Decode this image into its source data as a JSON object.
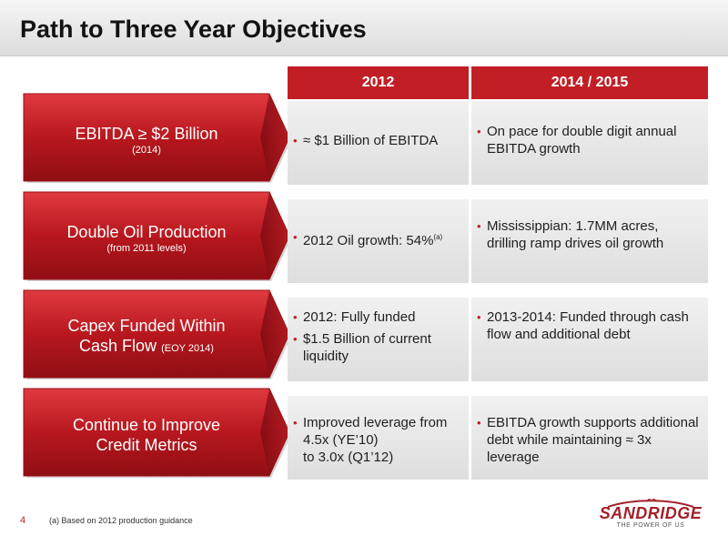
{
  "title": "Path to Three Year Objectives",
  "columns": [
    "2012",
    "2014 / 2015"
  ],
  "rows": [
    {
      "objective": "EBITDA ≥ $2 Billion",
      "note": "(2014)",
      "col2012": [
        "≈ $1 Billion of EBITDA"
      ],
      "col2015": [
        "On pace for double digit annual EBITDA growth"
      ]
    },
    {
      "objective": "Double Oil Production",
      "note": "(from 2011 levels)",
      "col2012": [
        "2012 Oil growth: 54%"
      ],
      "col2012_sup": "(a)",
      "col2015": [
        "Mississippian: 1.7MM acres, drilling ramp drives oil growth"
      ]
    },
    {
      "objective_line1": "Capex Funded Within",
      "objective_line2": "Cash Flow",
      "note": "(EOY 2014)",
      "col2012": [
        "2012: Fully funded",
        "$1.5 Billion of current liquidity"
      ],
      "col2015": [
        "2013-2014: Funded through cash flow and additional debt"
      ]
    },
    {
      "objective_line1": "Continue to Improve",
      "objective_line2": "Credit Metrics",
      "col2012_line1": "Improved leverage from",
      "col2012_line2": "4.5x (YE’10)",
      "col2012_line3": "to 3.0x (Q1’12)",
      "col2015": [
        "EBITDA growth supports additional debt while maintaining ≈ 3x leverage"
      ]
    }
  ],
  "footer": {
    "page_number": "4",
    "footnote": "(a)   Based on 2012 production guidance"
  },
  "logo": {
    "name": "SANDRIDGE",
    "tagline": "THE POWER OF US"
  },
  "colors": {
    "accent_red": "#c11f25",
    "arrow_dark": "#8f0e14",
    "cell_bg": "#e6e6e6"
  }
}
